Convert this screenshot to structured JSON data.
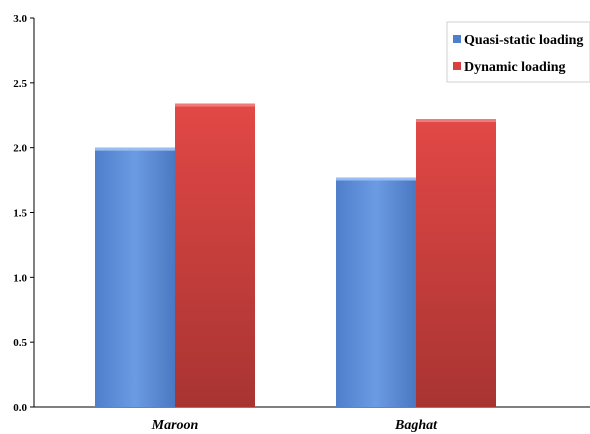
{
  "chart_data": {
    "type": "bar",
    "categories": [
      "Maroon",
      "Baghat"
    ],
    "series": [
      {
        "name": "Quasi-static loading",
        "values": [
          2.0,
          1.77
        ],
        "color": "#5b8bd6"
      },
      {
        "name": "Dynamic loading",
        "values": [
          2.34,
          2.22
        ],
        "color": "#d9413f"
      }
    ],
    "yticks": [
      "0.0",
      "0.5",
      "1.0",
      "1.5",
      "2.0",
      "2.5",
      "3.0"
    ],
    "ylim": [
      0,
      3.0
    ],
    "title": "",
    "xlabel": "",
    "ylabel": "",
    "grid": false,
    "legend_position": "top-right"
  }
}
